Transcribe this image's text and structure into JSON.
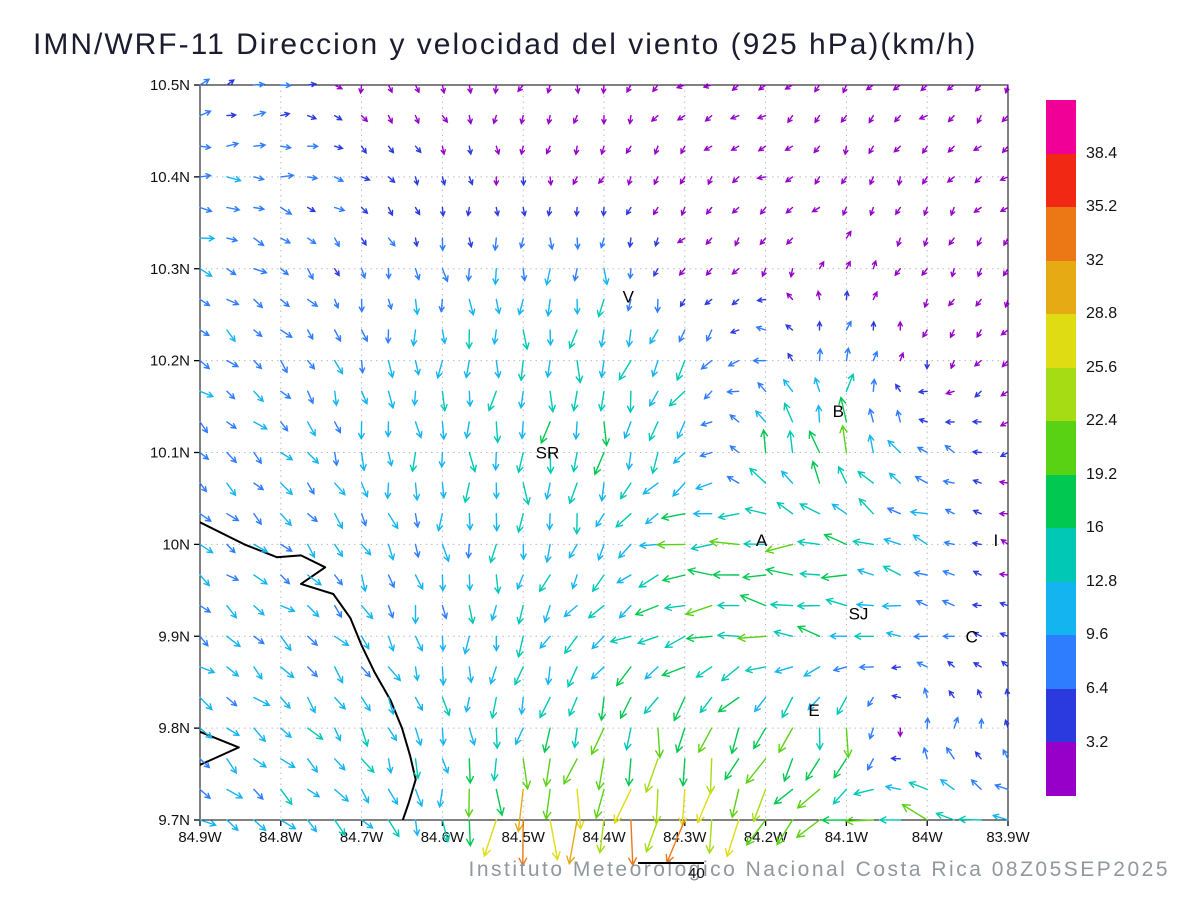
{
  "title": "IMN/WRF-11 Direccion y velocidad del viento (925 hPa)(km/h)",
  "footer": {
    "text": "Instituto Meteorologico Nacional Costa Rica 08Z05SEP2025",
    "ref_vector_label": "40",
    "ref_vector_speed": 40
  },
  "axes": {
    "lat_ticks": [
      "10.5N",
      "10.4N",
      "10.3N",
      "10.2N",
      "10.1N",
      "10N",
      "9.9N",
      "9.8N",
      "9.7N"
    ],
    "lon_ticks": [
      "84.9W",
      "84.8W",
      "84.7W",
      "84.6W",
      "84.5W",
      "84.4W",
      "84.3W",
      "84.2W",
      "84.1W",
      "84W",
      "83.9W"
    ],
    "lat_range": [
      9.7,
      10.5
    ],
    "lon_range": [
      -84.9,
      -83.9
    ]
  },
  "colorbar": {
    "labels_top_to_bottom": [
      "38.4",
      "35.2",
      "32",
      "28.8",
      "25.6",
      "22.4",
      "19.2",
      "16",
      "12.8",
      "9.6",
      "6.4",
      "3.2"
    ],
    "colors_bottom_to_top": [
      "#9600c8",
      "#2b3ade",
      "#2f7dff",
      "#14b4f0",
      "#00c8b4",
      "#00c850",
      "#5ad214",
      "#a5dc14",
      "#e0dc14",
      "#e6aa14",
      "#eb7814",
      "#f02814",
      "#f00096"
    ]
  },
  "stations": [
    {
      "label": "V",
      "lon": -84.37,
      "lat": 10.27
    },
    {
      "label": "B",
      "lon": -84.11,
      "lat": 10.145
    },
    {
      "label": "SR",
      "lon": -84.47,
      "lat": 10.1
    },
    {
      "label": "A",
      "lon": -84.205,
      "lat": 10.005
    },
    {
      "label": "SJ",
      "lon": -84.085,
      "lat": 9.925
    },
    {
      "label": "C",
      "lon": -83.945,
      "lat": 9.9
    },
    {
      "label": "E",
      "lon": -84.14,
      "lat": 9.82
    },
    {
      "label": "I",
      "lon": -83.915,
      "lat": 10.005
    }
  ],
  "map": {
    "coastline_color": "#000000",
    "coastline_segments": [
      [
        [
          -84.9,
          10.024
        ],
        [
          -84.845,
          10.0
        ],
        [
          -84.805,
          9.986
        ],
        [
          -84.775,
          9.988
        ],
        [
          -84.745,
          9.975
        ],
        [
          -84.775,
          9.957
        ],
        [
          -84.735,
          9.946
        ],
        [
          -84.714,
          9.92
        ],
        [
          -84.7,
          9.89
        ],
        [
          -84.684,
          9.861
        ],
        [
          -84.664,
          9.83
        ],
        [
          -84.65,
          9.8
        ],
        [
          -84.64,
          9.77
        ],
        [
          -84.633,
          9.744
        ],
        [
          -84.642,
          9.718
        ],
        [
          -84.649,
          9.7
        ]
      ],
      [
        [
          -84.9,
          9.796
        ],
        [
          -84.852,
          9.779
        ],
        [
          -84.9,
          9.76
        ]
      ]
    ]
  },
  "chart_data": {
    "type": "vector_field",
    "title": "IMN/WRF-11 Direccion y velocidad del viento (925 hPa)(km/h)",
    "model": "IMN/WRF-11",
    "level": "925 hPa",
    "units": "km/h",
    "valid_time": "08Z05SEP2025",
    "speed_levels": [
      3.2,
      6.4,
      9.6,
      12.8,
      16,
      19.2,
      22.4,
      25.6,
      28.8,
      32,
      35.2,
      38.4
    ],
    "grid_lons": [
      -84.9,
      -84.8,
      -84.7,
      -84.6,
      -84.5,
      -84.4,
      -84.3,
      -84.2,
      -84.1,
      -84.0,
      -83.9
    ],
    "grid_lats": [
      10.5,
      10.4,
      10.3,
      10.2,
      10.1,
      10.0,
      9.9,
      9.8,
      9.7
    ],
    "u": [
      [
        6,
        7,
        0,
        1,
        -1,
        0,
        -2,
        -2,
        -1,
        -2,
        -1
      ],
      [
        9,
        8,
        5,
        1,
        0,
        -1,
        -1,
        -2,
        -1,
        -1,
        -2
      ],
      [
        8,
        6,
        2,
        1,
        0,
        -1,
        -2,
        -1,
        1,
        -1,
        -1
      ],
      [
        7,
        6,
        2,
        0,
        -1,
        -2,
        -6,
        -8,
        3,
        -1,
        -2
      ],
      [
        6,
        7,
        2,
        0,
        -1,
        -2,
        -8,
        -5,
        -2,
        -8,
        -3
      ],
      [
        7,
        8,
        5,
        1,
        -1,
        -6,
        -17,
        -18,
        -16,
        -10,
        -2
      ],
      [
        8,
        8,
        6,
        2,
        -5,
        -10,
        -16,
        -17,
        -13,
        -9,
        -4
      ],
      [
        8,
        8,
        6,
        2,
        -2,
        -5,
        -4,
        -8,
        -2,
        1,
        0
      ],
      [
        9,
        9,
        7,
        2,
        -2,
        -3,
        -5,
        -12,
        -18,
        -16,
        -12
      ]
    ],
    "v": [
      [
        3,
        1,
        -2,
        -2,
        -2,
        -2,
        -1,
        -1,
        -2,
        -1,
        -2
      ],
      [
        0,
        -1,
        -3,
        -4,
        -3,
        -2,
        -2,
        -1,
        -2,
        -2,
        -1
      ],
      [
        -4,
        -5,
        -6,
        -9,
        -10,
        -10,
        -2,
        -2,
        2,
        -2,
        -2
      ],
      [
        -5,
        -6,
        -10,
        -12,
        -13,
        -14,
        -12,
        2,
        10,
        -3,
        -2
      ],
      [
        -6,
        -7,
        -11,
        -12,
        -14,
        -15,
        -10,
        14,
        18,
        4,
        -1
      ],
      [
        -6,
        -6,
        -9,
        -11,
        -12,
        -10,
        -2,
        0,
        3,
        4,
        1
      ],
      [
        -6,
        -7,
        -9,
        -11,
        -12,
        -9,
        -4,
        2,
        2,
        1,
        1
      ],
      [
        -7,
        -8,
        -10,
        -12,
        -14,
        -17,
        -19,
        -16,
        -18,
        8,
        6
      ],
      [
        -6,
        -7,
        -9,
        -14,
        -32,
        -27,
        -29,
        -20,
        -6,
        8,
        2
      ]
    ]
  }
}
